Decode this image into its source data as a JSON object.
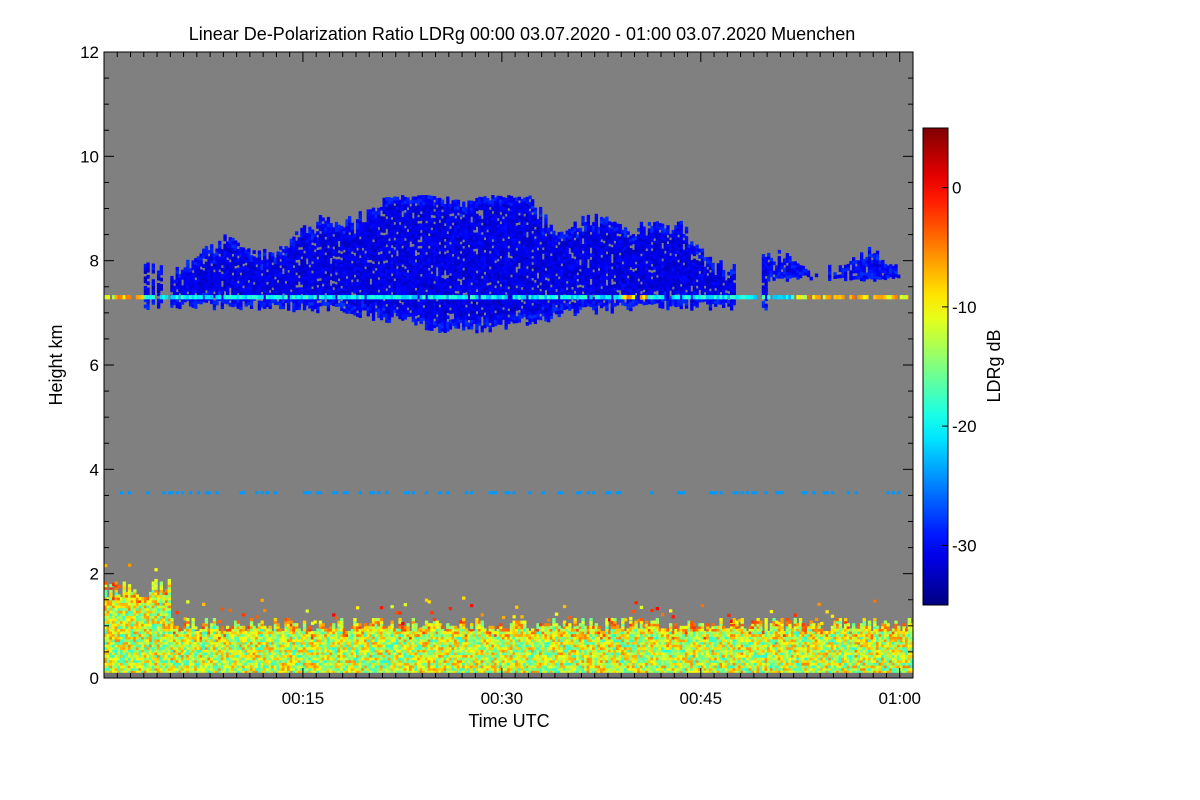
{
  "chart_data": {
    "type": "heatmap",
    "title": "Linear De-Polarization Ratio LDRg   00:00 03.07.2020 - 01:00 03.07.2020 Muenchen",
    "xlabel": "Time UTC",
    "ylabel": "Height km",
    "xlim": [
      0,
      61
    ],
    "ylim": [
      0,
      12
    ],
    "x_ticks": [
      {
        "value": 15,
        "label": "00:15"
      },
      {
        "value": 30,
        "label": "00:30"
      },
      {
        "value": 45,
        "label": "00:45"
      },
      {
        "value": 60,
        "label": "01:00"
      }
    ],
    "y_ticks": [
      {
        "value": 0,
        "label": "0"
      },
      {
        "value": 2,
        "label": "2"
      },
      {
        "value": 4,
        "label": "4"
      },
      {
        "value": 6,
        "label": "6"
      },
      {
        "value": 8,
        "label": "8"
      },
      {
        "value": 10,
        "label": "10"
      },
      {
        "value": 12,
        "label": "12"
      }
    ],
    "background_color": "#808080",
    "colorbar": {
      "label": "LDRg dB",
      "range": [
        -35,
        5
      ],
      "colormap": "jet",
      "ticks": [
        {
          "value": 0,
          "label": "0"
        },
        {
          "value": -10,
          "label": "-10"
        },
        {
          "value": -20,
          "label": "-20"
        },
        {
          "value": -30,
          "label": "-30"
        }
      ]
    },
    "features": {
      "cirrus_layer": {
        "t_start": 3,
        "t_end": 60,
        "base_km": 6.7,
        "top_km": 9.0,
        "ldr_db": -31
      },
      "melting_line": {
        "height_km": 7.3,
        "ldr_db": -20
      },
      "boundary_layer": {
        "base_km": 0.1,
        "top_km": 1.0,
        "ldr_db": -12
      },
      "faint_line": {
        "height_km": 3.55,
        "ldr_db": -24
      }
    }
  }
}
